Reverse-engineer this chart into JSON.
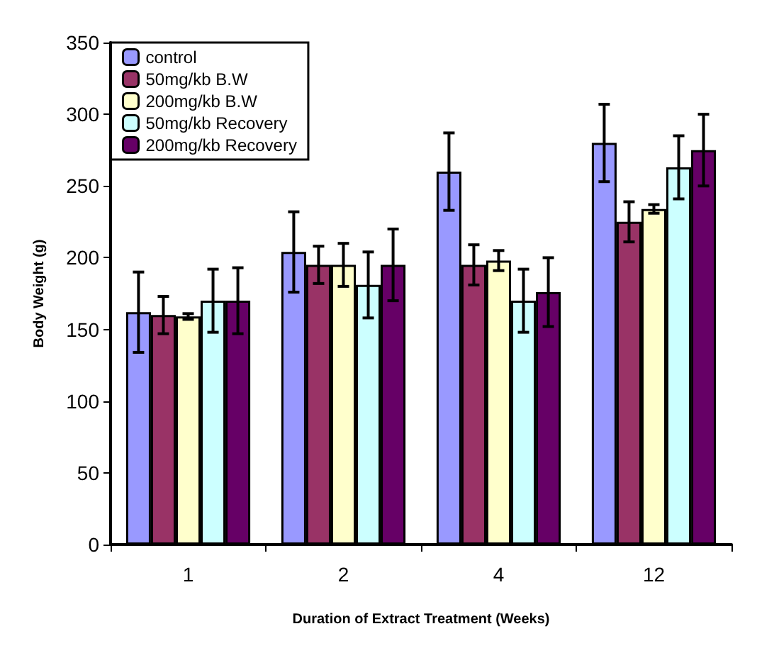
{
  "chart_data": {
    "type": "bar",
    "xlabel": "Duration of Extract Treatment (Weeks)",
    "ylabel": "Body Weight (g)",
    "categories": [
      "1",
      "2",
      "4",
      "12"
    ],
    "series": [
      {
        "name": "control",
        "color": "#9999ff",
        "values": [
          162,
          204,
          260,
          280
        ],
        "errors": [
          28,
          28,
          27,
          27
        ]
      },
      {
        "name": "50mg/kb B.W",
        "color": "#993366",
        "values": [
          160,
          195,
          195,
          225
        ],
        "errors": [
          13,
          13,
          14,
          14
        ]
      },
      {
        "name": "200mg/kb B.W",
        "color": "#ffffcc",
        "values": [
          159,
          195,
          198,
          234
        ],
        "errors": [
          2,
          15,
          7,
          3
        ]
      },
      {
        "name": "50mg/kb Recovery",
        "color": "#ccffff",
        "values": [
          170,
          181,
          170,
          263
        ],
        "errors": [
          22,
          23,
          22,
          22
        ]
      },
      {
        "name": "200mg/kb Recovery",
        "color": "#660066",
        "values": [
          170,
          195,
          176,
          275
        ],
        "errors": [
          23,
          25,
          24,
          25
        ]
      }
    ],
    "ylim": [
      0,
      350
    ],
    "yticks": [
      0,
      50,
      100,
      150,
      200,
      250,
      300,
      350
    ],
    "grid": false,
    "legend": "top left"
  }
}
